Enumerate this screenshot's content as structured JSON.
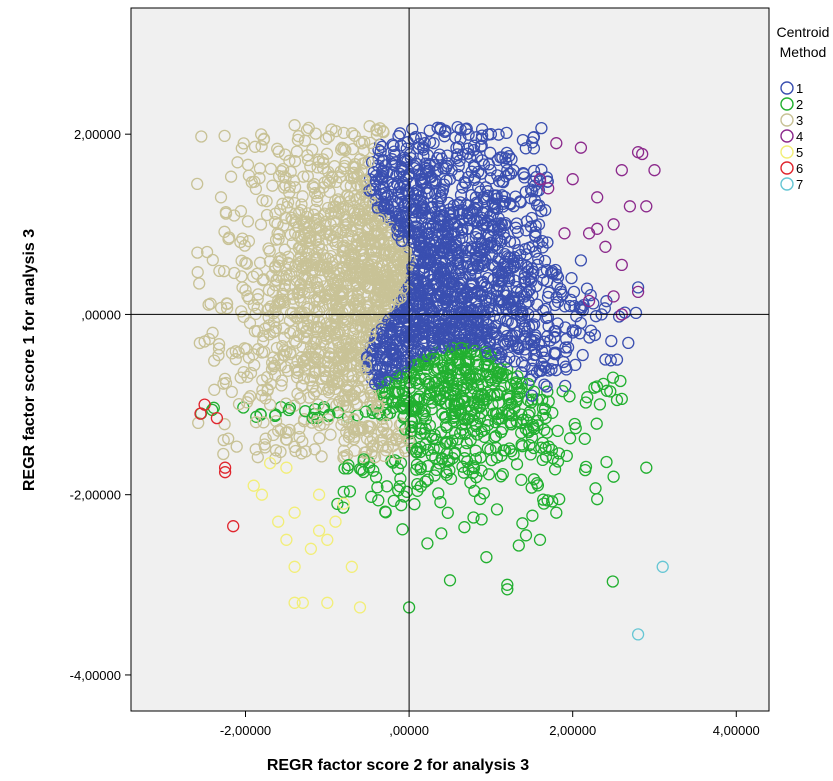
{
  "chart_data": {
    "type": "scatter",
    "xlabel": "REGR factor score   2 for analysis 3",
    "ylabel": "REGR factor score   1 for analysis 3",
    "xlim": [
      -3.4,
      4.4
    ],
    "ylim": [
      -4.4,
      3.4
    ],
    "x_ticks": [
      -2,
      0,
      2,
      4
    ],
    "x_tick_labels": [
      "-2,00000",
      ",00000",
      "2,00000",
      "4,00000"
    ],
    "y_ticks": [
      -4,
      -2,
      0,
      2
    ],
    "y_tick_labels": [
      "-4,00000",
      "-2,00000",
      ",00000",
      "2,00000"
    ],
    "reference_lines": {
      "x": 0,
      "y": 0
    },
    "grid": false,
    "background": "#f0f0f0",
    "legend": {
      "title_lines": [
        "Centroid",
        "Method"
      ],
      "placement": "right",
      "entries": [
        {
          "label": "1",
          "color": "#3a4fb0"
        },
        {
          "label": "2",
          "color": "#22b030"
        },
        {
          "label": "3",
          "color": "#c8c296"
        },
        {
          "label": "4",
          "color": "#8c2a8c"
        },
        {
          "label": "5",
          "color": "#f2ee78"
        },
        {
          "label": "6",
          "color": "#e0262e"
        },
        {
          "label": "7",
          "color": "#66c6d4"
        }
      ]
    },
    "series": [
      {
        "name": "1",
        "cluster": {
          "count": 1400,
          "x_range": [
            -0.3,
            2.8
          ],
          "y_range": [
            -0.9,
            2.0
          ]
        },
        "points": [
          [
            1.0,
            2.0
          ],
          [
            2.1,
            0.6
          ],
          [
            2.4,
            -0.5
          ],
          [
            2.8,
            0.3
          ],
          [
            1.5,
            -0.9
          ],
          [
            2.0,
            -0.2
          ],
          [
            0.3,
            1.9
          ],
          [
            1.2,
            1.6
          ]
        ]
      },
      {
        "name": "2",
        "cluster": {
          "count": 700,
          "x_range": [
            -0.8,
            2.9
          ],
          "y_range": [
            -3.3,
            -0.4
          ]
        },
        "points": [
          [
            0.0,
            -3.25
          ],
          [
            1.2,
            -3.0
          ],
          [
            1.2,
            -3.05
          ],
          [
            0.5,
            -2.95
          ],
          [
            2.9,
            -1.7
          ],
          [
            2.5,
            -1.8
          ],
          [
            2.3,
            -2.05
          ],
          [
            1.8,
            -2.2
          ],
          [
            1.6,
            -2.5
          ]
        ]
      },
      {
        "name": "3",
        "cluster": {
          "count": 1200,
          "x_range": [
            -2.5,
            0.0
          ],
          "y_range": [
            -1.3,
            2.1
          ]
        },
        "points": [
          [
            -1.4,
            2.1
          ],
          [
            -0.4,
            2.05
          ],
          [
            -2.5,
            -0.3
          ],
          [
            -2.3,
            1.3
          ],
          [
            -1.8,
            -0.9
          ],
          [
            -0.5,
            -1.3
          ]
        ]
      },
      {
        "name": "4",
        "points": [
          [
            1.8,
            1.9
          ],
          [
            2.1,
            1.85
          ],
          [
            2.8,
            1.8
          ],
          [
            2.85,
            1.78
          ],
          [
            3.0,
            1.6
          ],
          [
            2.6,
            1.6
          ],
          [
            2.7,
            1.2
          ],
          [
            2.9,
            1.2
          ],
          [
            2.5,
            1.0
          ],
          [
            2.3,
            0.95
          ],
          [
            2.2,
            0.9
          ],
          [
            1.9,
            0.9
          ],
          [
            2.0,
            1.5
          ],
          [
            1.6,
            1.5
          ],
          [
            2.6,
            0.55
          ],
          [
            2.8,
            0.25
          ],
          [
            2.5,
            0.2
          ],
          [
            2.2,
            0.15
          ],
          [
            2.6,
            0.0
          ],
          [
            1.7,
            1.4
          ],
          [
            2.3,
            1.3
          ],
          [
            2.4,
            0.75
          ]
        ]
      },
      {
        "name": "5",
        "points": [
          [
            -1.7,
            -1.65
          ],
          [
            -1.5,
            -1.7
          ],
          [
            -1.9,
            -1.9
          ],
          [
            -1.8,
            -2.0
          ],
          [
            -1.4,
            -2.2
          ],
          [
            -1.1,
            -2.4
          ],
          [
            -1.0,
            -2.5
          ],
          [
            -1.5,
            -2.5
          ],
          [
            -1.2,
            -2.6
          ],
          [
            -1.4,
            -2.8
          ],
          [
            -1.3,
            -3.2
          ],
          [
            -1.4,
            -3.2
          ],
          [
            -1.0,
            -3.2
          ],
          [
            -0.6,
            -3.25
          ],
          [
            -1.6,
            -2.3
          ],
          [
            -0.9,
            -2.3
          ],
          [
            -0.7,
            -2.8
          ],
          [
            -1.1,
            -2.0
          ],
          [
            -0.8,
            -2.1
          ]
        ]
      },
      {
        "name": "6",
        "points": [
          [
            -2.5,
            -1.0
          ],
          [
            -2.55,
            -1.1
          ],
          [
            -2.35,
            -1.15
          ],
          [
            -2.25,
            -1.7
          ],
          [
            -2.25,
            -1.75
          ],
          [
            -2.15,
            -2.35
          ]
        ]
      },
      {
        "name": "7",
        "points": [
          [
            3.1,
            -2.8
          ],
          [
            2.8,
            -3.55
          ]
        ]
      }
    ]
  }
}
